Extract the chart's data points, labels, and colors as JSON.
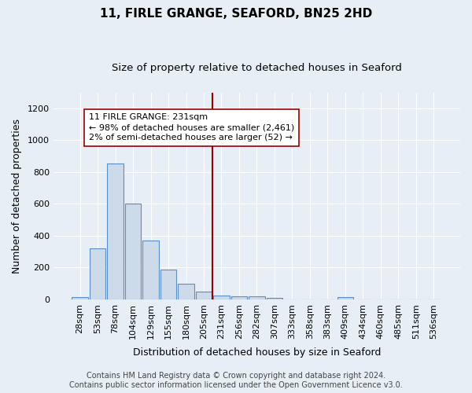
{
  "title": "11, FIRLE GRANGE, SEAFORD, BN25 2HD",
  "subtitle": "Size of property relative to detached houses in Seaford",
  "xlabel": "Distribution of detached houses by size in Seaford",
  "ylabel": "Number of detached properties",
  "footnote1": "Contains HM Land Registry data © Crown copyright and database right 2024.",
  "footnote2": "Contains public sector information licensed under the Open Government Licence v3.0.",
  "bin_labels": [
    "28sqm",
    "53sqm",
    "78sqm",
    "104sqm",
    "129sqm",
    "155sqm",
    "180sqm",
    "205sqm",
    "231sqm",
    "256sqm",
    "282sqm",
    "307sqm",
    "333sqm",
    "358sqm",
    "383sqm",
    "409sqm",
    "434sqm",
    "460sqm",
    "485sqm",
    "511sqm",
    "536sqm"
  ],
  "bar_heights": [
    15,
    320,
    855,
    600,
    370,
    185,
    100,
    48,
    22,
    17,
    17,
    10,
    0,
    0,
    0,
    12,
    0,
    0,
    0,
    0,
    0
  ],
  "bar_color": "#ccdaea",
  "bar_edge_color": "#5b8ec4",
  "vline_color": "#990000",
  "ylim": [
    0,
    1300
  ],
  "yticks": [
    0,
    200,
    400,
    600,
    800,
    1000,
    1200
  ],
  "annotation_line1": "11 FIRLE GRANGE: 231sqm",
  "annotation_line2": "← 98% of detached houses are smaller (2,461)",
  "annotation_line3": "2% of semi-detached houses are larger (52) →",
  "annotation_box_color": "#ffffff",
  "annotation_box_edge": "#990000",
  "background_color": "#e8eef5",
  "grid_color": "#ffffff",
  "title_fontsize": 11,
  "subtitle_fontsize": 9.5,
  "xlabel_fontsize": 9,
  "ylabel_fontsize": 9,
  "tick_fontsize": 8,
  "footnote_fontsize": 7,
  "annot_fontsize": 8
}
